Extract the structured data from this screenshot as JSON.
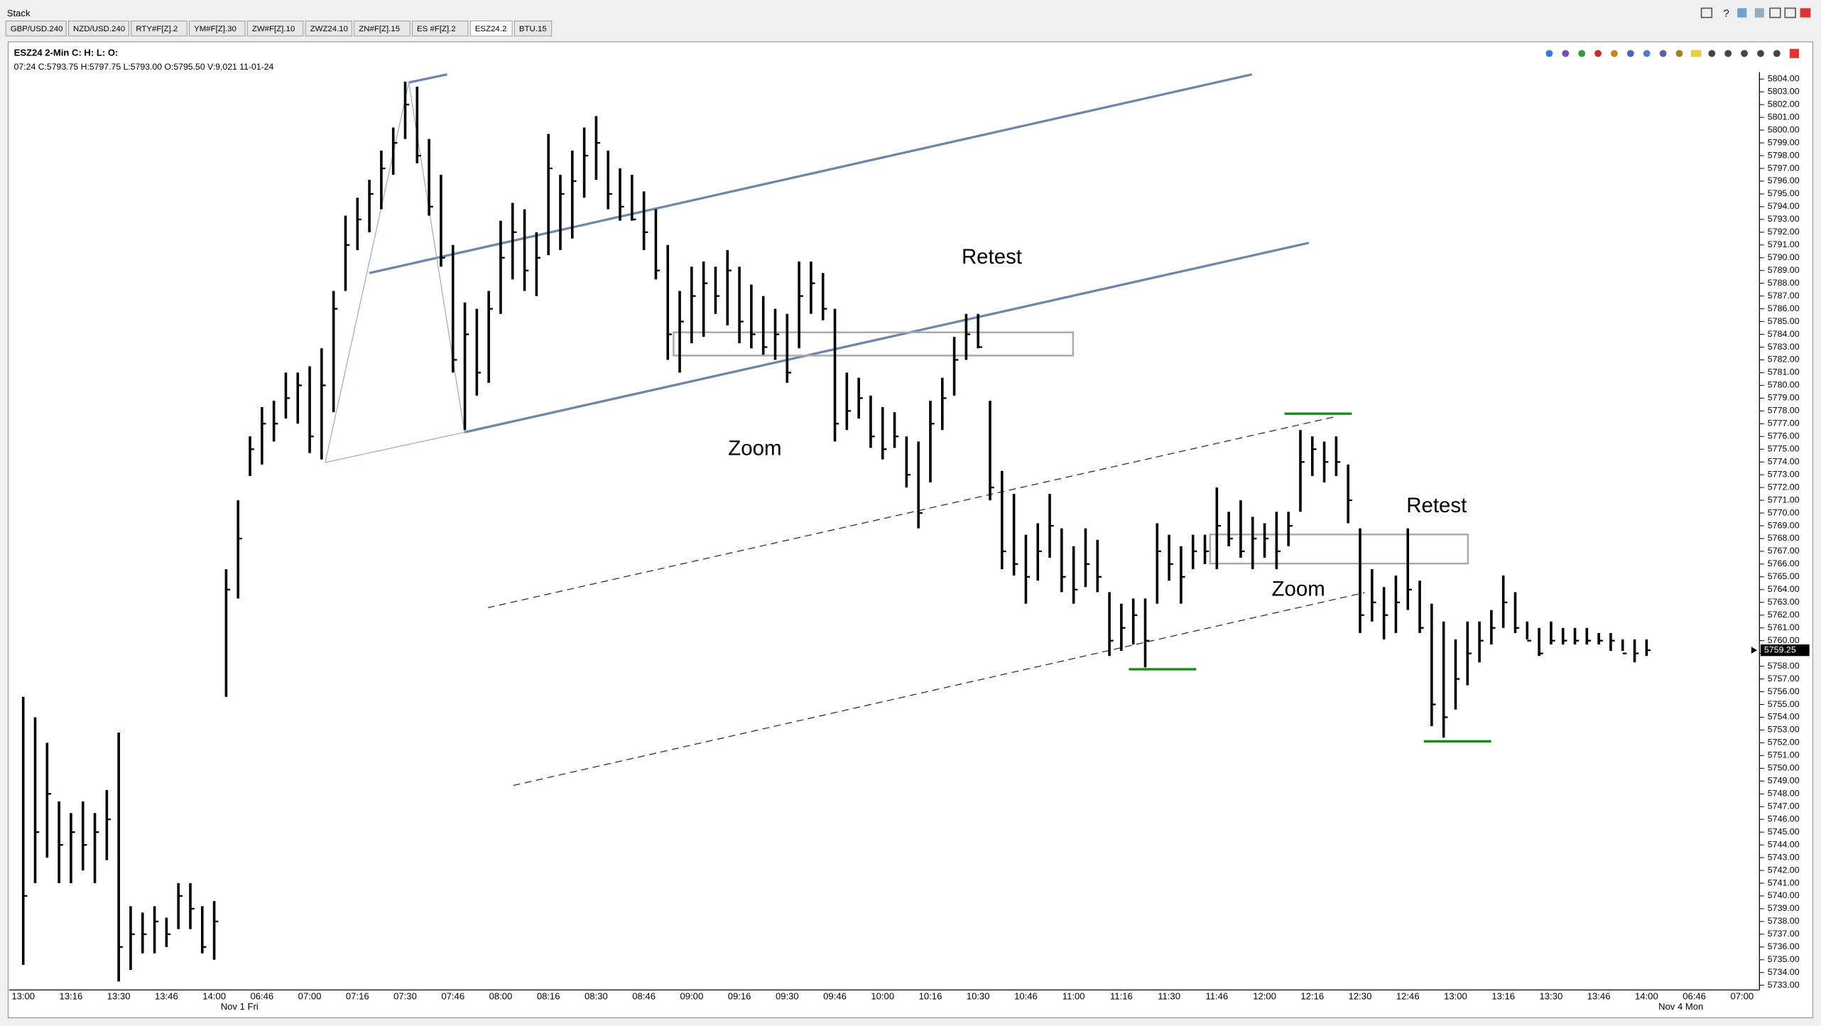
{
  "window": {
    "title": "Stack",
    "tabs": [
      "GBP/USD.240",
      "NZD/USD.240",
      "RTY#F[Z].2",
      "YM#F[Z].30",
      "ZW#F[Z].10",
      "ZWZ24.10",
      "ZN#F[Z].15",
      "ES #F[Z].2",
      "ESZ24.2",
      "BTU.15"
    ]
  },
  "chart_data": {
    "type": "ohlc",
    "title": "ESZ24 2-Min C: H: L: O:",
    "subtitle": "07:24 C:5793.75 H:5797.75 L:5793.00 O:5795.50 V:9,021 11-01-24",
    "annotations": [
      "Retest",
      "Zoom",
      "Retest",
      "Zoom"
    ],
    "date_labels": [
      "Nov 1 Fri",
      "Nov 4 Mon"
    ],
    "color": "#000000",
    "last_price": 5759.25,
    "categories": [
      "13:00",
      null,
      null,
      null,
      "13:16",
      null,
      null,
      null,
      "13:30",
      null,
      null,
      null,
      "13:46",
      null,
      null,
      null,
      "14:00",
      null,
      null,
      null,
      "06:46",
      null,
      null,
      null,
      "07:00",
      null,
      null,
      null,
      "07:16",
      null,
      null,
      null,
      "07:30",
      null,
      null,
      null,
      "07:46",
      null,
      null,
      null,
      "08:00",
      null,
      null,
      null,
      "08:16",
      null,
      null,
      null,
      "08:30",
      null,
      null,
      null,
      "08:46",
      null,
      null,
      null,
      "09:00",
      null,
      null,
      null,
      "09:16",
      null,
      null,
      null,
      "09:30",
      null,
      null,
      null,
      "09:46",
      null,
      null,
      null,
      "10:00",
      null,
      null,
      null,
      "10:16",
      null,
      null,
      null,
      "10:30",
      null,
      null,
      null,
      "10:46",
      null,
      null,
      null,
      "11:00",
      null,
      null,
      null,
      "11:16",
      null,
      null,
      null,
      "11:30",
      null,
      null,
      null,
      "11:46",
      null,
      null,
      null,
      "12:00",
      null,
      null,
      null,
      "12:16",
      null,
      null,
      null,
      "12:30",
      null,
      null,
      null,
      "12:46",
      null,
      null,
      null,
      "13:00",
      null,
      null,
      null,
      "13:16",
      null,
      null,
      null,
      "13:30",
      null,
      null,
      null,
      "13:46",
      null,
      null,
      null,
      "14:00",
      null,
      null,
      null,
      "06:46",
      null,
      null,
      null,
      "07:00"
    ],
    "high": [
      5755.6,
      5754,
      5752,
      5747.4,
      5746.5,
      5747.4,
      5746.5,
      5748.3,
      5752.8,
      5739.2,
      5738.7,
      5739.2,
      5738.3,
      5741,
      5741,
      5739.2,
      5739.6,
      5765.6,
      5771,
      5776,
      5778.3,
      5778.8,
      5781,
      5781,
      5781.5,
      5782.9,
      5787.4,
      5793.3,
      5794.7,
      5796.1,
      5798.4,
      5800.2,
      5803.8,
      5803.4,
      5799.3,
      5796.5,
      5791,
      5786.5,
      5786,
      5787.4,
      5792.9,
      5794.3,
      5793.8,
      5792,
      5799.7,
      5796.5,
      5798.4,
      5800.2,
      5801.1,
      5798.4,
      5797,
      5796.5,
      5795.2,
      5793.8,
      5791,
      5787.4,
      5789.3,
      5789.7,
      5789.3,
      5790.6,
      5789.3,
      5787.9,
      5787,
      5786,
      5785.6,
      5789.7,
      5789.7,
      5788.8,
      5786,
      5781,
      5780.6,
      5779.2,
      5778.3,
      5777.9,
      5776,
      5775.6,
      5778.8,
      5780.6,
      5783.8,
      5785.6,
      5785.6,
      5778.8,
      5773.3,
      5771.5,
      5768.3,
      5769.2,
      5771.5,
      5768.8,
      5767.4,
      5768.8,
      5767.9,
      5763.8,
      5762.9,
      5763.3,
      5763.3,
      5769.2,
      5768.3,
      5767.4,
      5768.3,
      5768.3,
      5772,
      5770.1,
      5771,
      5769.7,
      5769.2,
      5770.1,
      5770.1,
      5776.5,
      5776,
      5775.6,
      5776,
      5773.8,
      5768.8,
      5765.6,
      5764.2,
      5765.1,
      5768.8,
      5764.7,
      5762.9,
      5761.5,
      5760.1,
      5761.5,
      5761.5,
      5762.4,
      5765.1,
      5763.8,
      5761.5,
      5761,
      5761.5,
      5761,
      5761,
      5761,
      5760.6,
      5760.6,
      5760.1,
      5760.1,
      5760.1,
      null,
      null,
      null,
      null,
      null,
      null,
      null,
      null
    ],
    "low": [
      5734.6,
      5741,
      5743,
      5741,
      5741,
      5742,
      5741,
      5742.8,
      5733.3,
      5734.2,
      5735.5,
      5735.5,
      5736,
      5737.4,
      5737.4,
      5735.5,
      5735,
      5755.6,
      5763.3,
      5772.9,
      5773.8,
      5775.6,
      5777.4,
      5777,
      5774.7,
      5774.2,
      5777.9,
      5787.4,
      5790.6,
      5792,
      5793.8,
      5796.5,
      5799.3,
      5797.4,
      5793.3,
      5789.3,
      5781,
      5776.5,
      5779.2,
      5780.2,
      5785.6,
      5788.3,
      5787.4,
      5787,
      5790.2,
      5790.6,
      5791.5,
      5794.7,
      5796.1,
      5793.8,
      5792.9,
      5792.9,
      5790.6,
      5788.3,
      5782,
      5781,
      5783.3,
      5783.8,
      5785.6,
      5784.7,
      5783.3,
      5782.9,
      5782.4,
      5782,
      5780.2,
      5782.9,
      5785.6,
      5785.1,
      5775.6,
      5776.5,
      5777.4,
      5775.1,
      5774.2,
      5775.1,
      5772,
      5768.8,
      5772.4,
      5776.5,
      5779.2,
      5782,
      5782.9,
      5771,
      5765.6,
      5765.1,
      5762.9,
      5764.7,
      5766.5,
      5763.8,
      5762.9,
      5764.2,
      5763.8,
      5758.8,
      5759.2,
      5759.7,
      5757.9,
      5762.9,
      5764.7,
      5762.9,
      5765.6,
      5766,
      5765.6,
      5767.4,
      5766.5,
      5765.6,
      5766.5,
      5765.6,
      5767.4,
      5770.1,
      5772.9,
      5772.4,
      5772.9,
      5769.2,
      5760.6,
      5761.5,
      5760.1,
      5760.6,
      5762.4,
      5760.6,
      5753.3,
      5752.4,
      5754.6,
      5756.5,
      5758.3,
      5759.7,
      5761,
      5760.6,
      5760.1,
      5758.8,
      5759.7,
      5759.7,
      5759.7,
      5759.7,
      5759.7,
      5759.2,
      5759.2,
      5758.3,
      5758.8,
      null,
      null,
      null,
      null,
      null,
      null,
      null,
      null
    ],
    "close": [
      5740,
      5745,
      5748,
      5744,
      5745,
      5744,
      5745,
      5746,
      5736,
      5737,
      5737,
      5738,
      5737,
      5740,
      5739,
      5736,
      5738,
      5764,
      5768,
      5775,
      5777,
      5777,
      5779,
      5780,
      5776,
      5780,
      5786,
      5791,
      5793,
      5795,
      5797,
      5799,
      5802,
      5798,
      5794,
      5790,
      5782,
      5784,
      5781,
      5786,
      5790,
      5792,
      5789,
      5790,
      5797,
      5795,
      5796,
      5798,
      5799,
      5795,
      5794,
      5793,
      5792,
      5789,
      5784,
      5785,
      5787,
      5788,
      5787,
      5789,
      5785,
      5784,
      5783,
      5784,
      5781,
      5787,
      5788,
      5786,
      5777,
      5778,
      5779,
      5776,
      5775,
      5776,
      5773,
      5770,
      5777,
      5779,
      5782,
      5784,
      5783,
      5772,
      5767,
      5766,
      5765,
      5767,
      5769,
      5765,
      5764,
      5766,
      5765,
      5760,
      5761,
      5762,
      5760,
      5767,
      5766,
      5765,
      5767,
      5767,
      5769,
      5768,
      5767,
      5768,
      5768,
      5767,
      5769,
      5774,
      5775,
      5774,
      5774,
      5771,
      5762,
      5763,
      5762,
      5763,
      5764,
      5761,
      5755,
      5754,
      5757,
      5759,
      5760,
      5761,
      5763,
      5761,
      5760,
      5759,
      5760,
      5760,
      5760,
      5760,
      5760,
      5760,
      5759,
      5759,
      5759.25,
      null,
      null,
      null,
      null,
      null,
      null,
      null,
      null
    ],
    "ylim": [
      5732.8,
      5804.5
    ],
    "yticks": [
      {
        "value": 5804,
        "label": "5804.00"
      },
      {
        "value": 5803,
        "label": "5803.00"
      },
      {
        "value": 5802,
        "label": "5802.00"
      },
      {
        "value": 5801,
        "label": "5801.00"
      },
      {
        "value": 5800,
        "label": "5800.00"
      },
      {
        "value": 5799,
        "label": "5799.00"
      },
      {
        "value": 5798,
        "label": "5798.00"
      },
      {
        "value": 5797,
        "label": "5797.00"
      },
      {
        "value": 5796,
        "label": "5796.00"
      },
      {
        "value": 5795,
        "label": "5795.00"
      },
      {
        "value": 5794,
        "label": "5794.00"
      },
      {
        "value": 5793,
        "label": "5793.00"
      },
      {
        "value": 5792,
        "label": "5792.00"
      },
      {
        "value": 5791,
        "label": "5791.00"
      },
      {
        "value": 5790,
        "label": "5790.00"
      },
      {
        "value": 5789,
        "label": "5789.00"
      },
      {
        "value": 5788,
        "label": "5788.00"
      },
      {
        "value": 5787,
        "label": "5787.00"
      },
      {
        "value": 5786,
        "label": "5786.00"
      },
      {
        "value": 5785,
        "label": "5785.00"
      },
      {
        "value": 5784,
        "label": "5784.00"
      },
      {
        "value": 5783,
        "label": "5783.00"
      },
      {
        "value": 5782,
        "label": "5782.00"
      },
      {
        "value": 5781,
        "label": "5781.00"
      },
      {
        "value": 5780,
        "label": "5780.00"
      },
      {
        "value": 5779,
        "label": "5779.00"
      },
      {
        "value": 5778,
        "label": "5778.00"
      },
      {
        "value": 5777,
        "label": "5777.00"
      },
      {
        "value": 5776,
        "label": "5776.00"
      },
      {
        "value": 5775,
        "label": "5775.00"
      },
      {
        "value": 5774,
        "label": "5774.00"
      },
      {
        "value": 5773,
        "label": "5773.00"
      },
      {
        "value": 5772,
        "label": "5772.00"
      },
      {
        "value": 5771,
        "label": "5771.00"
      },
      {
        "value": 5770,
        "label": "5770.00"
      },
      {
        "value": 5769,
        "label": "5769.00"
      },
      {
        "value": 5768,
        "label": "5768.00"
      },
      {
        "value": 5767,
        "label": "5767.00"
      },
      {
        "value": 5766,
        "label": "5766.00"
      },
      {
        "value": 5765,
        "label": "5765.00"
      },
      {
        "value": 5764,
        "label": "5764.00"
      },
      {
        "value": 5763,
        "label": "5763.00"
      },
      {
        "value": 5762,
        "label": "5762.00"
      },
      {
        "value": 5761,
        "label": "5761.00"
      },
      {
        "value": 5760,
        "label": "5760.00"
      },
      {
        "value": 5759,
        "label": "5759.00"
      },
      {
        "value": 5758,
        "label": "5758.00"
      },
      {
        "value": 5757,
        "label": "5757.00"
      },
      {
        "value": 5756,
        "label": "5756.00"
      },
      {
        "value": 5755,
        "label": "5755.00"
      },
      {
        "value": 5754,
        "label": "5754.00"
      },
      {
        "value": 5753,
        "label": "5753.00"
      },
      {
        "value": 5752,
        "label": "5752.00"
      },
      {
        "value": 5751,
        "label": "5751.00"
      },
      {
        "value": 5750,
        "label": "5750.00"
      },
      {
        "value": 5749,
        "label": "5749.00"
      },
      {
        "value": 5748,
        "label": "5748.00"
      },
      {
        "value": 5747,
        "label": "5747.00"
      },
      {
        "value": 5746,
        "label": "5746.00"
      },
      {
        "value": 5745,
        "label": "5745.00"
      },
      {
        "value": 5744,
        "label": "5744.00"
      },
      {
        "value": 5743,
        "label": "5743.00"
      },
      {
        "value": 5742,
        "label": "5742.00"
      },
      {
        "value": 5741,
        "label": "5741.00"
      },
      {
        "value": 5740,
        "label": "5740.00"
      },
      {
        "value": 5739,
        "label": "5739.00"
      },
      {
        "value": 5738,
        "label": "5738.00"
      },
      {
        "value": 5737,
        "label": "5737.00"
      },
      {
        "value": 5736,
        "label": "5736.00"
      },
      {
        "value": 5735,
        "label": "5735.00"
      },
      {
        "value": 5734,
        "label": "5734.00"
      },
      {
        "value": 5733,
        "label": "5733.00"
      }
    ]
  }
}
